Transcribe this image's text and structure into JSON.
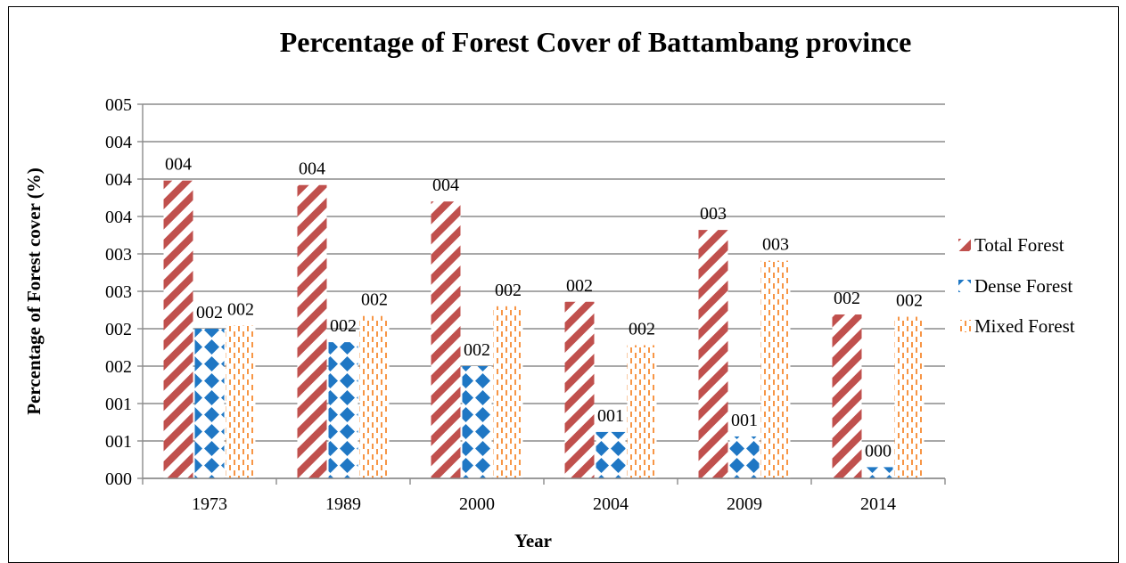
{
  "chart_data": {
    "type": "bar",
    "title": "Percentage of Forest Cover of Battambang province",
    "xlabel": "Year",
    "ylabel": "Percentage of Forest cover (%)",
    "categories": [
      "1973",
      "1989",
      "2000",
      "2004",
      "2009",
      "2014"
    ],
    "ylim": [
      0,
      5
    ],
    "y_ticks": [
      0,
      0.5,
      1.0,
      1.5,
      2.0,
      2.5,
      3.0,
      3.5,
      4.0,
      4.5,
      5.0
    ],
    "y_tick_labels": [
      "000",
      "001",
      "001",
      "002",
      "002",
      "003",
      "003",
      "004",
      "004",
      "004",
      "005"
    ],
    "grid": true,
    "legend": "right",
    "series": [
      {
        "name": "Total Forest",
        "color": "#c0504d",
        "pattern": "diagonal-stripes",
        "values": [
          3.98,
          3.92,
          3.7,
          2.36,
          3.32,
          2.19
        ],
        "labels": [
          "004",
          "004",
          "004",
          "002",
          "003",
          "002"
        ]
      },
      {
        "name": "Dense Forest",
        "color": "#1f77c4",
        "pattern": "dotted-grid",
        "values": [
          2.0,
          1.82,
          1.5,
          0.62,
          0.56,
          0.15
        ],
        "labels": [
          "002",
          "002",
          "002",
          "001",
          "001",
          "000"
        ]
      },
      {
        "name": "Mixed Forest",
        "color": "#f79646",
        "pattern": "dashed-vertical",
        "values": [
          2.04,
          2.17,
          2.3,
          1.78,
          2.91,
          2.16
        ],
        "labels": [
          "002",
          "002",
          "002",
          "002",
          "003",
          "002"
        ]
      }
    ]
  }
}
